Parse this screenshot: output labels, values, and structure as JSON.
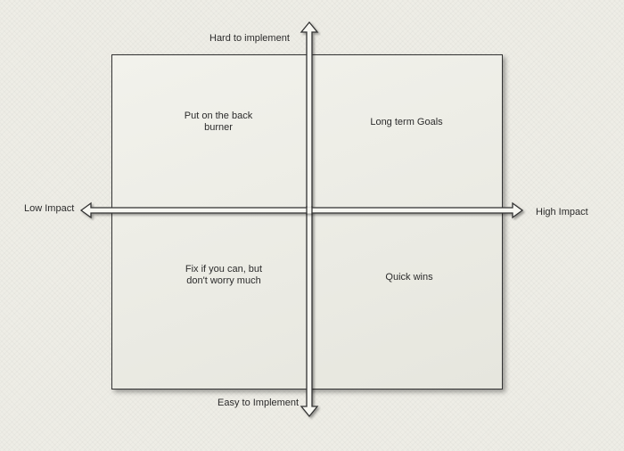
{
  "axes": {
    "top_label": "Hard to implement",
    "bottom_label": "Easy to Implement",
    "left_label": "Low Impact",
    "right_label": "High Impact"
  },
  "quadrants": {
    "top_left": "Put on the back\nburner",
    "top_right": "Long term Goals",
    "bottom_left": "Fix if you can, but\ndon't worry much",
    "bottom_right": "Quick wins"
  }
}
